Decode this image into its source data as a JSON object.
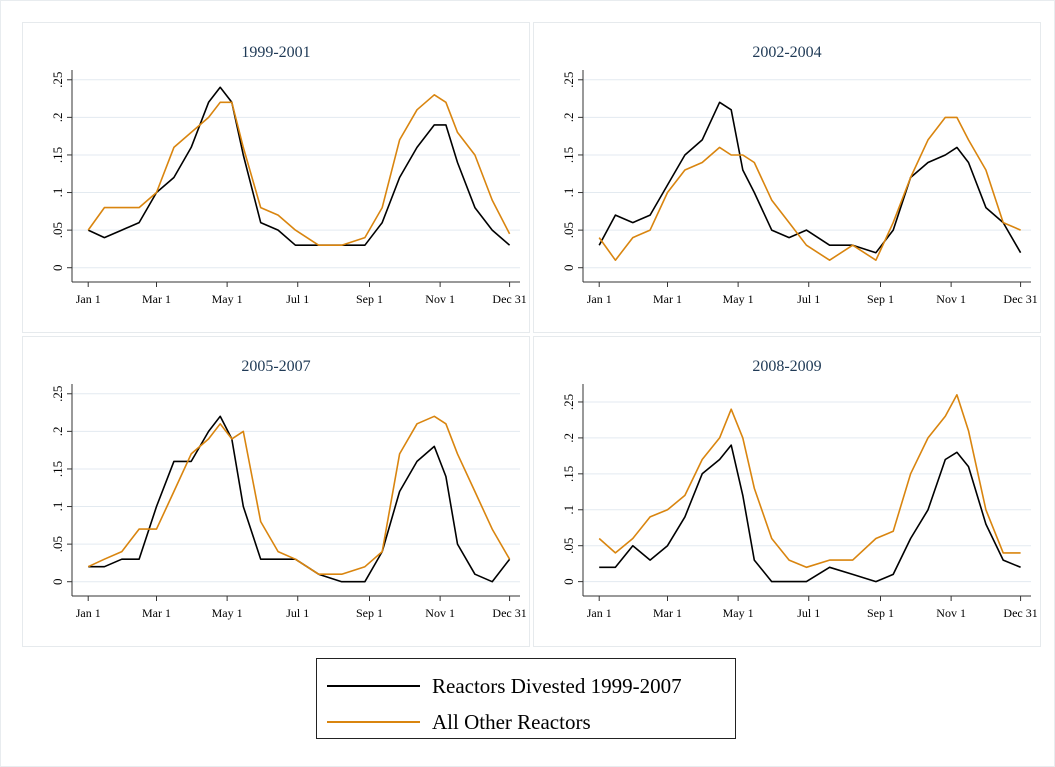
{
  "chart_data": [
    {
      "type": "line",
      "title": "1999-2001",
      "x": [
        1,
        15,
        30,
        45,
        60,
        75,
        90,
        105,
        115,
        125,
        135,
        150,
        165,
        180,
        200,
        220,
        240,
        255,
        270,
        285,
        300,
        310,
        320,
        335,
        350,
        365
      ],
      "series": [
        {
          "name": "Reactors Divested 1999-2007",
          "color": "#000000",
          "values": [
            0.05,
            0.04,
            0.05,
            0.06,
            0.1,
            0.12,
            0.16,
            0.22,
            0.24,
            0.22,
            0.15,
            0.06,
            0.05,
            0.03,
            0.03,
            0.03,
            0.03,
            0.06,
            0.12,
            0.16,
            0.19,
            0.19,
            0.14,
            0.08,
            0.05,
            0.03
          ]
        },
        {
          "name": "All Other Reactors",
          "color": "#d9850f",
          "values": [
            0.05,
            0.08,
            0.08,
            0.08,
            0.1,
            0.16,
            0.18,
            0.2,
            0.22,
            0.22,
            0.16,
            0.08,
            0.07,
            0.05,
            0.03,
            0.03,
            0.04,
            0.08,
            0.17,
            0.21,
            0.23,
            0.22,
            0.18,
            0.15,
            0.09,
            0.045
          ]
        }
      ],
      "xlim": [
        -13,
        374
      ],
      "ylim": [
        -0.019,
        0.263
      ],
      "xticks": [
        {
          "value": 1,
          "label": "Jan 1"
        },
        {
          "value": 60,
          "label": "Mar 1"
        },
        {
          "value": 121,
          "label": "May 1"
        },
        {
          "value": 182,
          "label": "Jul 1"
        },
        {
          "value": 244,
          "label": "Sep 1"
        },
        {
          "value": 305,
          "label": "Nov 1"
        },
        {
          "value": 365,
          "label": "Dec 31"
        }
      ],
      "yticks": [
        0,
        {
          "value": 0.05,
          "label": ".05"
        },
        {
          "value": 0.1,
          "label": ".1"
        },
        {
          "value": 0.15,
          "label": ".15"
        },
        {
          "value": 0.2,
          "label": ".2"
        },
        {
          "value": 0.25,
          "label": ".25"
        }
      ],
      "grid": true
    },
    {
      "type": "line",
      "title": "2002-2004",
      "x": [
        1,
        15,
        30,
        45,
        60,
        75,
        90,
        105,
        115,
        125,
        135,
        150,
        165,
        180,
        200,
        220,
        240,
        255,
        270,
        285,
        300,
        310,
        320,
        335,
        350,
        365
      ],
      "series": [
        {
          "values": [
            0.03,
            0.07,
            0.06,
            0.07,
            0.11,
            0.15,
            0.17,
            0.22,
            0.21,
            0.13,
            0.1,
            0.05,
            0.04,
            0.05,
            0.03,
            0.03,
            0.02,
            0.05,
            0.12,
            0.14,
            0.15,
            0.16,
            0.14,
            0.08,
            0.06,
            0.02
          ]
        },
        {
          "values": [
            0.04,
            0.01,
            0.04,
            0.05,
            0.1,
            0.13,
            0.14,
            0.16,
            0.15,
            0.15,
            0.14,
            0.09,
            0.06,
            0.03,
            0.01,
            0.03,
            0.01,
            0.06,
            0.12,
            0.17,
            0.2,
            0.2,
            0.17,
            0.13,
            0.06,
            0.05
          ]
        }
      ],
      "xlim": [
        -13,
        374
      ],
      "ylim": [
        -0.019,
        0.263
      ],
      "xticks": [
        {
          "value": 1,
          "label": "Jan 1"
        },
        {
          "value": 60,
          "label": "Mar 1"
        },
        {
          "value": 121,
          "label": "May 1"
        },
        {
          "value": 182,
          "label": "Jul 1"
        },
        {
          "value": 244,
          "label": "Sep 1"
        },
        {
          "value": 305,
          "label": "Nov 1"
        },
        {
          "value": 365,
          "label": "Dec 31"
        }
      ],
      "yticks": [
        0,
        {
          "value": 0.05,
          "label": ".05"
        },
        {
          "value": 0.1,
          "label": ".1"
        },
        {
          "value": 0.15,
          "label": ".15"
        },
        {
          "value": 0.2,
          "label": ".2"
        },
        {
          "value": 0.25,
          "label": ".25"
        }
      ],
      "grid": true
    },
    {
      "type": "line",
      "title": "2005-2007",
      "x": [
        1,
        15,
        30,
        45,
        60,
        75,
        90,
        105,
        115,
        125,
        135,
        150,
        165,
        180,
        200,
        220,
        240,
        255,
        270,
        285,
        300,
        310,
        320,
        335,
        350,
        365
      ],
      "series": [
        {
          "values": [
            0.02,
            0.02,
            0.03,
            0.03,
            0.1,
            0.16,
            0.16,
            0.2,
            0.22,
            0.19,
            0.1,
            0.03,
            0.03,
            0.03,
            0.01,
            0,
            0,
            0.04,
            0.12,
            0.16,
            0.18,
            0.14,
            0.05,
            0.01,
            0,
            0.03
          ]
        },
        {
          "values": [
            0.02,
            0.03,
            0.04,
            0.07,
            0.07,
            0.12,
            0.17,
            0.19,
            0.21,
            0.19,
            0.2,
            0.08,
            0.04,
            0.03,
            0.01,
            0.01,
            0.02,
            0.04,
            0.17,
            0.21,
            0.22,
            0.21,
            0.17,
            0.12,
            0.07,
            0.03
          ]
        }
      ],
      "xlim": [
        -13,
        374
      ],
      "ylim": [
        -0.019,
        0.263
      ],
      "xticks": [
        {
          "value": 1,
          "label": "Jan 1"
        },
        {
          "value": 60,
          "label": "Mar 1"
        },
        {
          "value": 121,
          "label": "May 1"
        },
        {
          "value": 182,
          "label": "Jul 1"
        },
        {
          "value": 244,
          "label": "Sep 1"
        },
        {
          "value": 305,
          "label": "Nov 1"
        },
        {
          "value": 365,
          "label": "Dec 31"
        }
      ],
      "yticks": [
        0,
        {
          "value": 0.05,
          "label": ".05"
        },
        {
          "value": 0.1,
          "label": ".1"
        },
        {
          "value": 0.15,
          "label": ".15"
        },
        {
          "value": 0.2,
          "label": ".2"
        },
        {
          "value": 0.25,
          "label": ".25"
        }
      ],
      "grid": true
    },
    {
      "type": "line",
      "title": "2008-2009",
      "x": [
        1,
        15,
        30,
        45,
        60,
        75,
        90,
        105,
        115,
        125,
        135,
        150,
        165,
        180,
        200,
        220,
        240,
        255,
        270,
        285,
        300,
        310,
        320,
        335,
        350,
        365
      ],
      "series": [
        {
          "values": [
            0.02,
            0.02,
            0.05,
            0.03,
            0.05,
            0.09,
            0.15,
            0.17,
            0.19,
            0.12,
            0.03,
            0,
            0,
            0,
            0.02,
            0.01,
            0,
            0.01,
            0.06,
            0.1,
            0.17,
            0.18,
            0.16,
            0.08,
            0.03,
            0.02
          ]
        },
        {
          "values": [
            0.06,
            0.04,
            0.06,
            0.09,
            0.1,
            0.12,
            0.17,
            0.2,
            0.24,
            0.2,
            0.13,
            0.06,
            0.03,
            0.02,
            0.03,
            0.03,
            0.06,
            0.07,
            0.15,
            0.2,
            0.23,
            0.26,
            0.21,
            0.1,
            0.04,
            0.04
          ]
        }
      ],
      "xlim": [
        -13,
        374
      ],
      "ylim": [
        -0.02,
        0.275
      ],
      "xticks": [
        {
          "value": 1,
          "label": "Jan 1"
        },
        {
          "value": 60,
          "label": "Mar 1"
        },
        {
          "value": 121,
          "label": "May 1"
        },
        {
          "value": 182,
          "label": "Jul 1"
        },
        {
          "value": 244,
          "label": "Sep 1"
        },
        {
          "value": 305,
          "label": "Nov 1"
        },
        {
          "value": 365,
          "label": "Dec 31"
        }
      ],
      "yticks": [
        0,
        {
          "value": 0.05,
          "label": ".05"
        },
        {
          "value": 0.1,
          "label": ".1"
        },
        {
          "value": 0.15,
          "label": ".15"
        },
        {
          "value": 0.2,
          "label": ".2"
        },
        {
          "value": 0.25,
          "label": ".25"
        }
      ],
      "grid": true
    }
  ]
}
